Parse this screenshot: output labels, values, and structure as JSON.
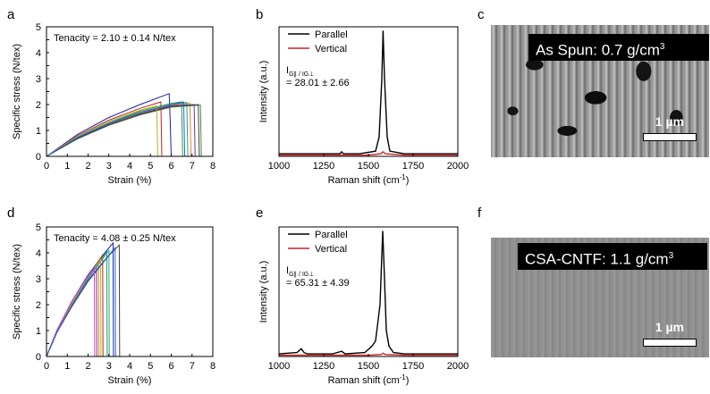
{
  "panel_letters": {
    "a": "a",
    "b": "b",
    "c": "c",
    "d": "d",
    "e": "e",
    "f": "f"
  },
  "sem": {
    "c": {
      "label_text": "As Spun: 0.7 g/cm",
      "label_sup": "3",
      "scale": "1 µm"
    },
    "f": {
      "label_text": "CSA-CNTF:  1.1 g/cm",
      "label_sup": "3",
      "scale": "1 µm"
    }
  },
  "chart_data": [
    {
      "id": "a",
      "type": "line",
      "xlabel": "Strain (%)",
      "ylabel": "Specific stress (N/tex)",
      "xlim": [
        0,
        8
      ],
      "ylim": [
        0,
        5
      ],
      "xticks": [
        0,
        1,
        2,
        3,
        4,
        5,
        6,
        7,
        8
      ],
      "yticks": [
        0,
        0.5,
        1,
        1.5,
        2,
        2.5,
        3,
        3.5,
        4,
        4.5,
        5
      ],
      "annotation": "Tenacity = 2.10 ± 0.14 N/tex",
      "series": [
        {
          "color": "#1f1fa8",
          "x": [
            0,
            1.5,
            3,
            4.5,
            5.9,
            5.95,
            6.0
          ],
          "y": [
            0,
            0.85,
            1.5,
            2.0,
            2.42,
            1.4,
            0
          ]
        },
        {
          "color": "#c02020",
          "x": [
            0,
            1.5,
            3,
            4.5,
            5.5,
            5.55
          ],
          "y": [
            0,
            0.8,
            1.4,
            1.85,
            2.1,
            0
          ]
        },
        {
          "color": "#2a9a3a",
          "x": [
            0,
            1.5,
            3,
            4.5,
            6.0,
            6.5,
            6.55
          ],
          "y": [
            0,
            0.75,
            1.3,
            1.75,
            2.05,
            2.1,
            0
          ]
        },
        {
          "color": "#d48a10",
          "x": [
            0,
            1.5,
            3,
            4.5,
            6.0,
            6.9,
            6.95
          ],
          "y": [
            0,
            0.72,
            1.25,
            1.68,
            1.98,
            2.05,
            0
          ]
        },
        {
          "color": "#7a2aa0",
          "x": [
            0,
            1.5,
            3,
            4.5,
            6.0,
            7.1,
            7.15
          ],
          "y": [
            0,
            0.7,
            1.22,
            1.64,
            1.95,
            2.0,
            0
          ]
        },
        {
          "color": "#1aa0c0",
          "x": [
            0,
            1.5,
            3,
            4.5,
            6.0,
            6.75,
            6.8
          ],
          "y": [
            0,
            0.74,
            1.28,
            1.7,
            2.0,
            2.08,
            0
          ]
        },
        {
          "color": "#3c8c3c",
          "x": [
            0,
            1.5,
            3,
            4.5,
            6.0,
            7.4,
            7.45
          ],
          "y": [
            0,
            0.68,
            1.2,
            1.6,
            1.9,
            1.98,
            0
          ]
        },
        {
          "color": "#404040",
          "x": [
            0,
            1.5,
            3,
            4.5,
            6.0,
            7.3,
            7.35
          ],
          "y": [
            0,
            0.69,
            1.21,
            1.62,
            1.92,
            2.0,
            0
          ]
        },
        {
          "color": "#b8b020",
          "x": [
            0,
            1.5,
            3,
            4.5,
            5.3,
            5.35
          ],
          "y": [
            0,
            0.78,
            1.35,
            1.78,
            1.95,
            0
          ]
        },
        {
          "color": "#2060d0",
          "x": [
            0,
            1.5,
            3,
            4.5,
            6.0,
            6.6,
            6.65
          ],
          "y": [
            0,
            0.73,
            1.27,
            1.7,
            2.0,
            2.1,
            0
          ]
        }
      ]
    },
    {
      "id": "b",
      "type": "line",
      "xlabel": "Raman shift (cm",
      "xlabel_sup": "-1",
      "xlabel_end": ")",
      "ylabel": "Intensity (a.u.)",
      "xlim": [
        1000,
        2000
      ],
      "ylim": [
        0,
        1
      ],
      "xticks": [
        1000,
        1250,
        1500,
        1750,
        2000
      ],
      "legend": [
        "Parallel",
        "Vertical"
      ],
      "annotation_ratio": "I",
      "annotation_sub": "G∥ / IG⊥",
      "annotation_value": "= 28.01 ± 2.66",
      "series": [
        {
          "name": "Parallel",
          "color": "#000000",
          "x": [
            1000,
            1200,
            1340,
            1350,
            1360,
            1450,
            1540,
            1560,
            1575,
            1582,
            1590,
            1605,
            1620,
            1700,
            2000
          ],
          "y": [
            0.02,
            0.02,
            0.02,
            0.035,
            0.02,
            0.02,
            0.04,
            0.15,
            0.6,
            0.97,
            0.6,
            0.15,
            0.04,
            0.02,
            0.02
          ]
        },
        {
          "name": "Vertical",
          "color": "#cc2222",
          "x": [
            1000,
            1500,
            1570,
            1582,
            1595,
            1700,
            2000
          ],
          "y": [
            0.01,
            0.01,
            0.02,
            0.035,
            0.02,
            0.01,
            0.01
          ]
        }
      ]
    },
    {
      "id": "d",
      "type": "line",
      "xlabel": "Strain (%)",
      "ylabel": "Specific stress (N/tex)",
      "xlim": [
        0,
        8
      ],
      "ylim": [
        0,
        5
      ],
      "xticks": [
        0,
        1,
        2,
        3,
        4,
        5,
        6,
        7,
        8
      ],
      "yticks": [
        0,
        0.5,
        1,
        1.5,
        2,
        2.5,
        3,
        3.5,
        4,
        4.5,
        5
      ],
      "annotation": "Tenacity = 4.08 ± 0.25 N/tex",
      "series": [
        {
          "color": "#1f1fa8",
          "x": [
            0,
            0.5,
            1.2,
            2.0,
            2.8,
            3.2,
            3.22
          ],
          "y": [
            0,
            1.0,
            2.1,
            3.15,
            4.0,
            4.38,
            0
          ]
        },
        {
          "color": "#c02020",
          "x": [
            0,
            0.5,
            1.2,
            2.0,
            2.7,
            2.72
          ],
          "y": [
            0,
            0.98,
            2.05,
            3.1,
            3.92,
            0
          ]
        },
        {
          "color": "#2a9a3a",
          "x": [
            0,
            0.5,
            1.2,
            2.0,
            2.9,
            2.92
          ],
          "y": [
            0,
            0.96,
            2.0,
            3.05,
            4.05,
            0
          ]
        },
        {
          "color": "#d48a10",
          "x": [
            0,
            0.5,
            1.2,
            2.0,
            2.5,
            2.52
          ],
          "y": [
            0,
            0.99,
            2.08,
            3.12,
            3.6,
            0
          ]
        },
        {
          "color": "#7a2aa0",
          "x": [
            0,
            0.5,
            1.2,
            2.0,
            2.4,
            2.42
          ],
          "y": [
            0,
            1.0,
            2.1,
            3.15,
            3.55,
            0
          ]
        },
        {
          "color": "#1aa0c0",
          "x": [
            0,
            0.5,
            1.2,
            2.0,
            3.0,
            3.02
          ],
          "y": [
            0,
            0.95,
            1.98,
            3.0,
            4.1,
            0
          ]
        },
        {
          "color": "#404040",
          "x": [
            0,
            0.5,
            1.2,
            2.0,
            3.0,
            3.5,
            3.52
          ],
          "y": [
            0,
            0.92,
            1.9,
            2.9,
            3.9,
            4.3,
            0
          ]
        },
        {
          "color": "#b8b020",
          "x": [
            0,
            0.5,
            1.2,
            2.0,
            2.6,
            2.62
          ],
          "y": [
            0,
            0.97,
            2.02,
            3.08,
            3.75,
            0
          ]
        },
        {
          "color": "#d040c0",
          "x": [
            0,
            0.5,
            1.2,
            2.0,
            2.3,
            2.32
          ],
          "y": [
            0,
            1.0,
            2.1,
            3.1,
            3.4,
            0
          ]
        },
        {
          "color": "#2060d0",
          "x": [
            0,
            0.5,
            1.2,
            2.0,
            3.3,
            3.32
          ],
          "y": [
            0,
            0.93,
            1.95,
            2.95,
            4.2,
            0
          ]
        }
      ]
    },
    {
      "id": "e",
      "type": "line",
      "xlabel": "Raman shift (cm",
      "xlabel_sup": "-1",
      "xlabel_end": ")",
      "ylabel": "Intensity (a.u.)",
      "xlim": [
        1000,
        2000
      ],
      "ylim": [
        0,
        1
      ],
      "xticks": [
        1000,
        1250,
        1500,
        1750,
        2000
      ],
      "legend": [
        "Parallel",
        "Vertical"
      ],
      "annotation_ratio": "I",
      "annotation_sub": "G∥ / IG⊥",
      "annotation_value": "= 65.31 ± 4.39",
      "series": [
        {
          "name": "Parallel",
          "color": "#000000",
          "x": [
            1000,
            1100,
            1125,
            1140,
            1160,
            1300,
            1350,
            1370,
            1480,
            1520,
            1540,
            1565,
            1580,
            1590,
            1600,
            1615,
            1640,
            1700,
            2000
          ],
          "y": [
            0.02,
            0.03,
            0.06,
            0.03,
            0.02,
            0.02,
            0.04,
            0.02,
            0.03,
            0.08,
            0.12,
            0.4,
            0.97,
            0.6,
            0.2,
            0.08,
            0.03,
            0.02,
            0.02
          ]
        },
        {
          "name": "Vertical",
          "color": "#cc2222",
          "x": [
            1000,
            1500,
            1570,
            1582,
            1595,
            1700,
            2000
          ],
          "y": [
            0.01,
            0.01,
            0.015,
            0.025,
            0.015,
            0.01,
            0.01
          ]
        }
      ]
    }
  ]
}
